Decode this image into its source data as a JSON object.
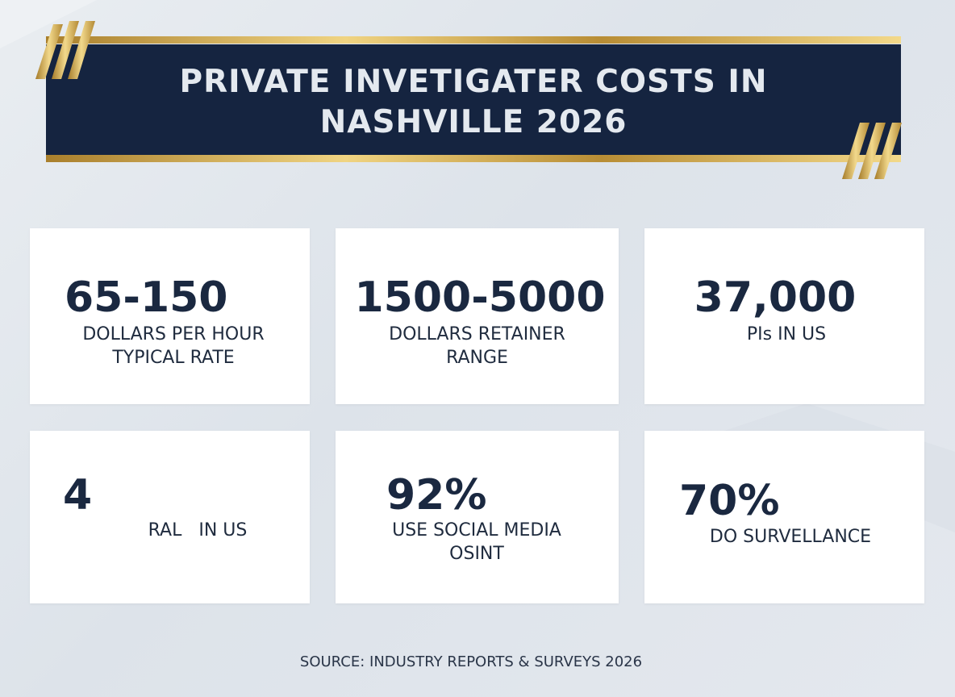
{
  "header": {
    "title": [
      "PRIVATE INVETIGATER COSTS IN",
      "NASHVILLE 2026"
    ]
  },
  "cards": [
    {
      "stat": "65-150",
      "label": [
        "DOLLARS PER HOUR",
        "TYPICAL RATE"
      ]
    },
    {
      "stat": "1500-5000",
      "label": [
        "DOLLARS RETAINER",
        "RANGE"
      ]
    },
    {
      "stat": "37,000",
      "label": [
        "PIs IN US"
      ]
    },
    {
      "stat": "4",
      "label": [
        "RAL   IN US"
      ]
    },
    {
      "stat": "92%",
      "label": [
        "USE SOCIAL MEDIA",
        "OSINT"
      ]
    },
    {
      "stat": "70%",
      "label": [
        "DO SURVELLANCE"
      ]
    }
  ],
  "footer": {
    "source": "SOURCE: INDUSTRY REPORTS & SURVEYS 2026"
  }
}
